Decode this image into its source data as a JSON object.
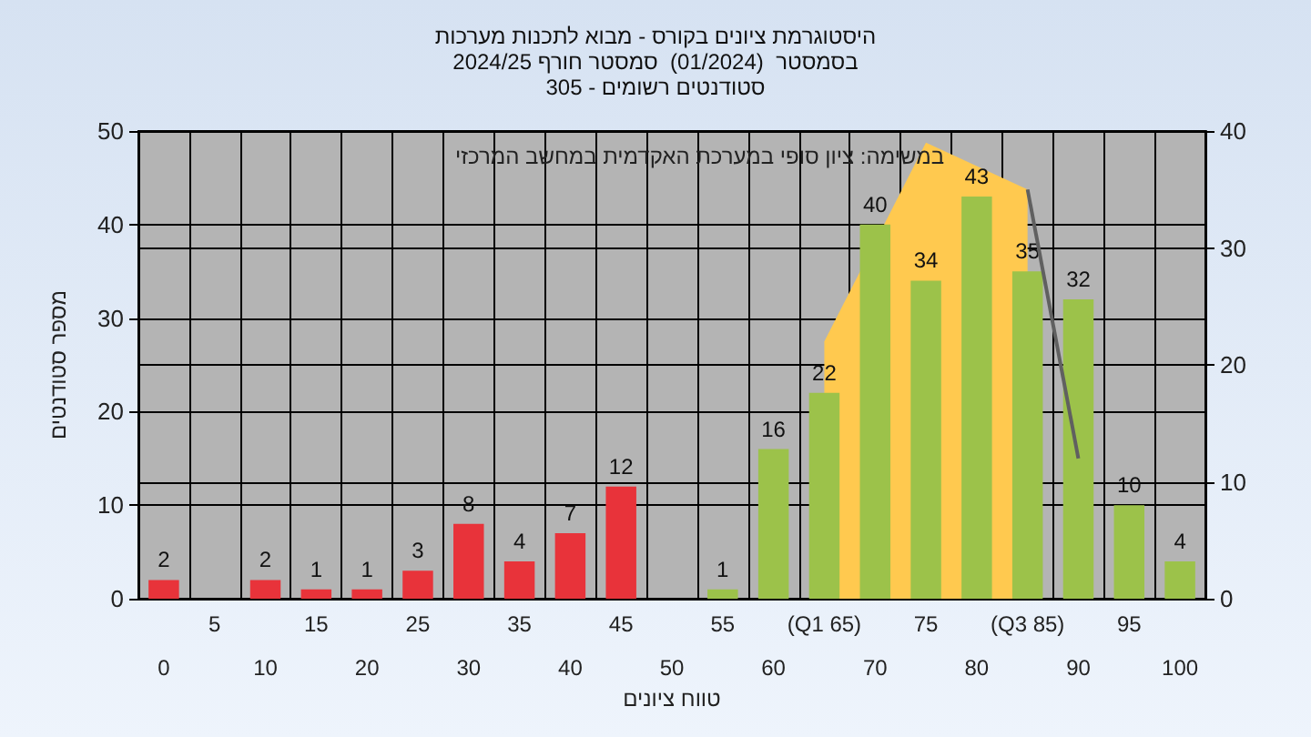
{
  "chart_data": {
    "type": "bar",
    "title": "היסטוגרמת ציונים בקורס - מבוא לתכנות מערכות\nבסמסטר  (01/2024)  סמסטר חורף 2024/25\nסטודנטים רשומים - 305",
    "xlabel": "טווח ציונים",
    "ylabel": "מספר סטודנטים",
    "annotations": [
      "במשימה: ציון סופי במערכת האקדמית במחשב המרכזי"
    ],
    "categories": [
      "0",
      "5",
      "10",
      "15",
      "20",
      "25",
      "30",
      "35",
      "40",
      "45",
      "50",
      "55",
      "60",
      "(Q1 65)",
      "70",
      "75",
      "80",
      "(Q3 85)",
      "90",
      "95",
      "100"
    ],
    "series": [
      {
        "type": "area",
        "axis": "y2",
        "color": "#ffc94f",
        "values": [
          null,
          null,
          null,
          null,
          null,
          null,
          null,
          null,
          null,
          null,
          null,
          null,
          null,
          22,
          null,
          39,
          null,
          35,
          null,
          null,
          null
        ]
      },
      {
        "type": "line",
        "axis": "y2",
        "color": "#606060",
        "values": [
          null,
          null,
          null,
          null,
          null,
          null,
          null,
          null,
          null,
          null,
          null,
          null,
          null,
          null,
          null,
          null,
          null,
          35,
          12,
          null,
          null
        ]
      },
      {
        "data_labels": true,
        "values": [
          2,
          null,
          2,
          1,
          1,
          3,
          8,
          4,
          7,
          12,
          null,
          1,
          16,
          22,
          40,
          34,
          43,
          35,
          32,
          10,
          4
        ],
        "colors": [
          "#e8333a",
          "#e8333a",
          "#e8333a",
          "#e8333a",
          "#e8333a",
          "#e8333a",
          "#e8333a",
          "#e8333a",
          "#e8333a",
          "#e8333a",
          "#e8333a",
          "#9cc24a",
          "#9cc24a",
          "#9cc24a",
          "#9cc24a",
          "#9cc24a",
          "#9cc24a",
          "#9cc24a",
          "#9cc24a",
          "#9cc24a",
          "#9cc24a"
        ]
      }
    ],
    "ylim": [
      0,
      50
    ],
    "yticks": [
      0,
      10,
      20,
      30,
      40,
      50
    ],
    "y2lim": [
      0,
      40
    ],
    "y2ticks": [
      0,
      10,
      20,
      30,
      40
    ],
    "grid": true
  }
}
